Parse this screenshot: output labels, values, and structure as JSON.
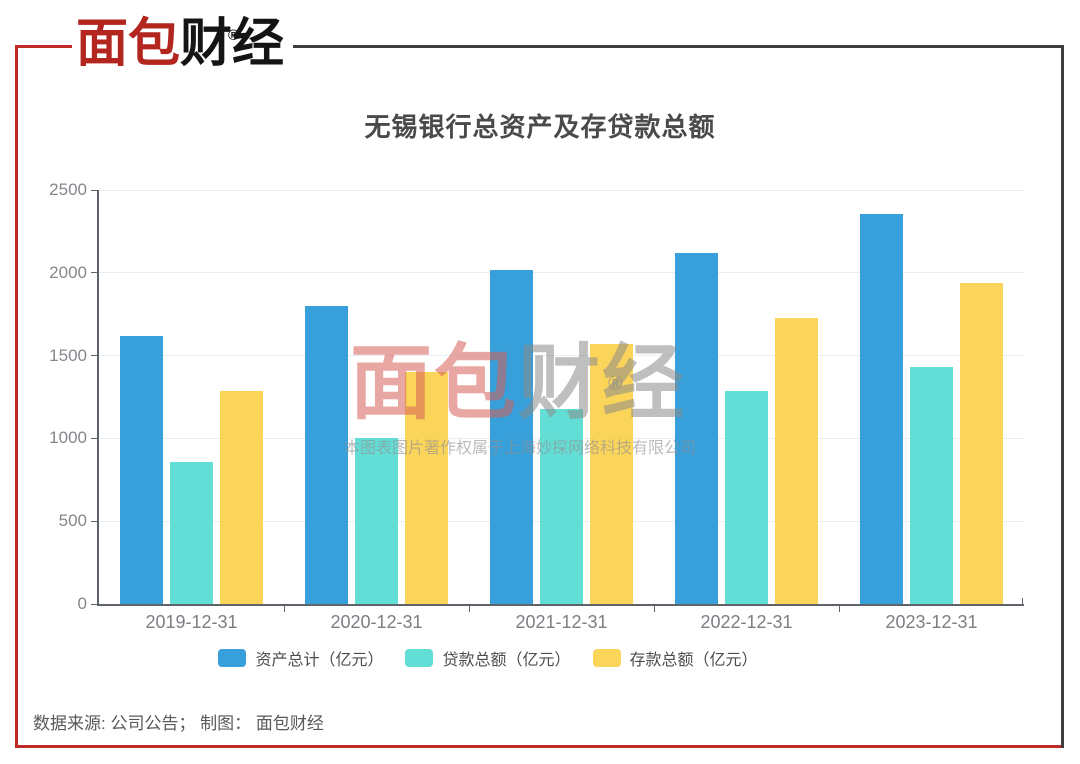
{
  "logo": {
    "text_red": "面包",
    "text_black": "财经",
    "registered": "®"
  },
  "header": {
    "title": "无锡银行总资产及存贷款总额"
  },
  "watermark": {
    "text_red": "面包",
    "text_gray": "财经",
    "registered": "®",
    "copyright": "本图表图片著作权属于上海妙探网络科技有限公司"
  },
  "source_note": "数据来源: 公司公告； 制图： 面包财经",
  "colors": {
    "assets_blue": "#379FD9",
    "loans_teal": "#63DED6",
    "deposits_yellow": "#FBD45A",
    "frame_red": "#BE2A26",
    "frame_dark": "#3E3E40",
    "grid": "#E9EDF7",
    "axis": "#5E626B"
  },
  "chart_data": {
    "type": "bar",
    "title": "无锡银行总资产及存贷款总额",
    "categories": [
      "2019-12-31",
      "2020-12-31",
      "2021-12-31",
      "2022-12-31",
      "2023-12-31"
    ],
    "series": [
      {
        "name": "资产总计（亿元）",
        "color": "#379FD9",
        "values": [
          1620,
          1800,
          2020,
          2120,
          2355
        ]
      },
      {
        "name": "贷款总额（亿元）",
        "color": "#63DED6",
        "values": [
          855,
          1000,
          1180,
          1285,
          1430
        ]
      },
      {
        "name": "存款总额（亿元）",
        "color": "#FBD45A",
        "values": [
          1285,
          1400,
          1570,
          1725,
          1940
        ]
      }
    ],
    "ylim": [
      0,
      2500
    ],
    "y_ticks": [
      0,
      500,
      1000,
      1500,
      2000,
      2500
    ],
    "grid": true,
    "legend_position": "bottom"
  }
}
